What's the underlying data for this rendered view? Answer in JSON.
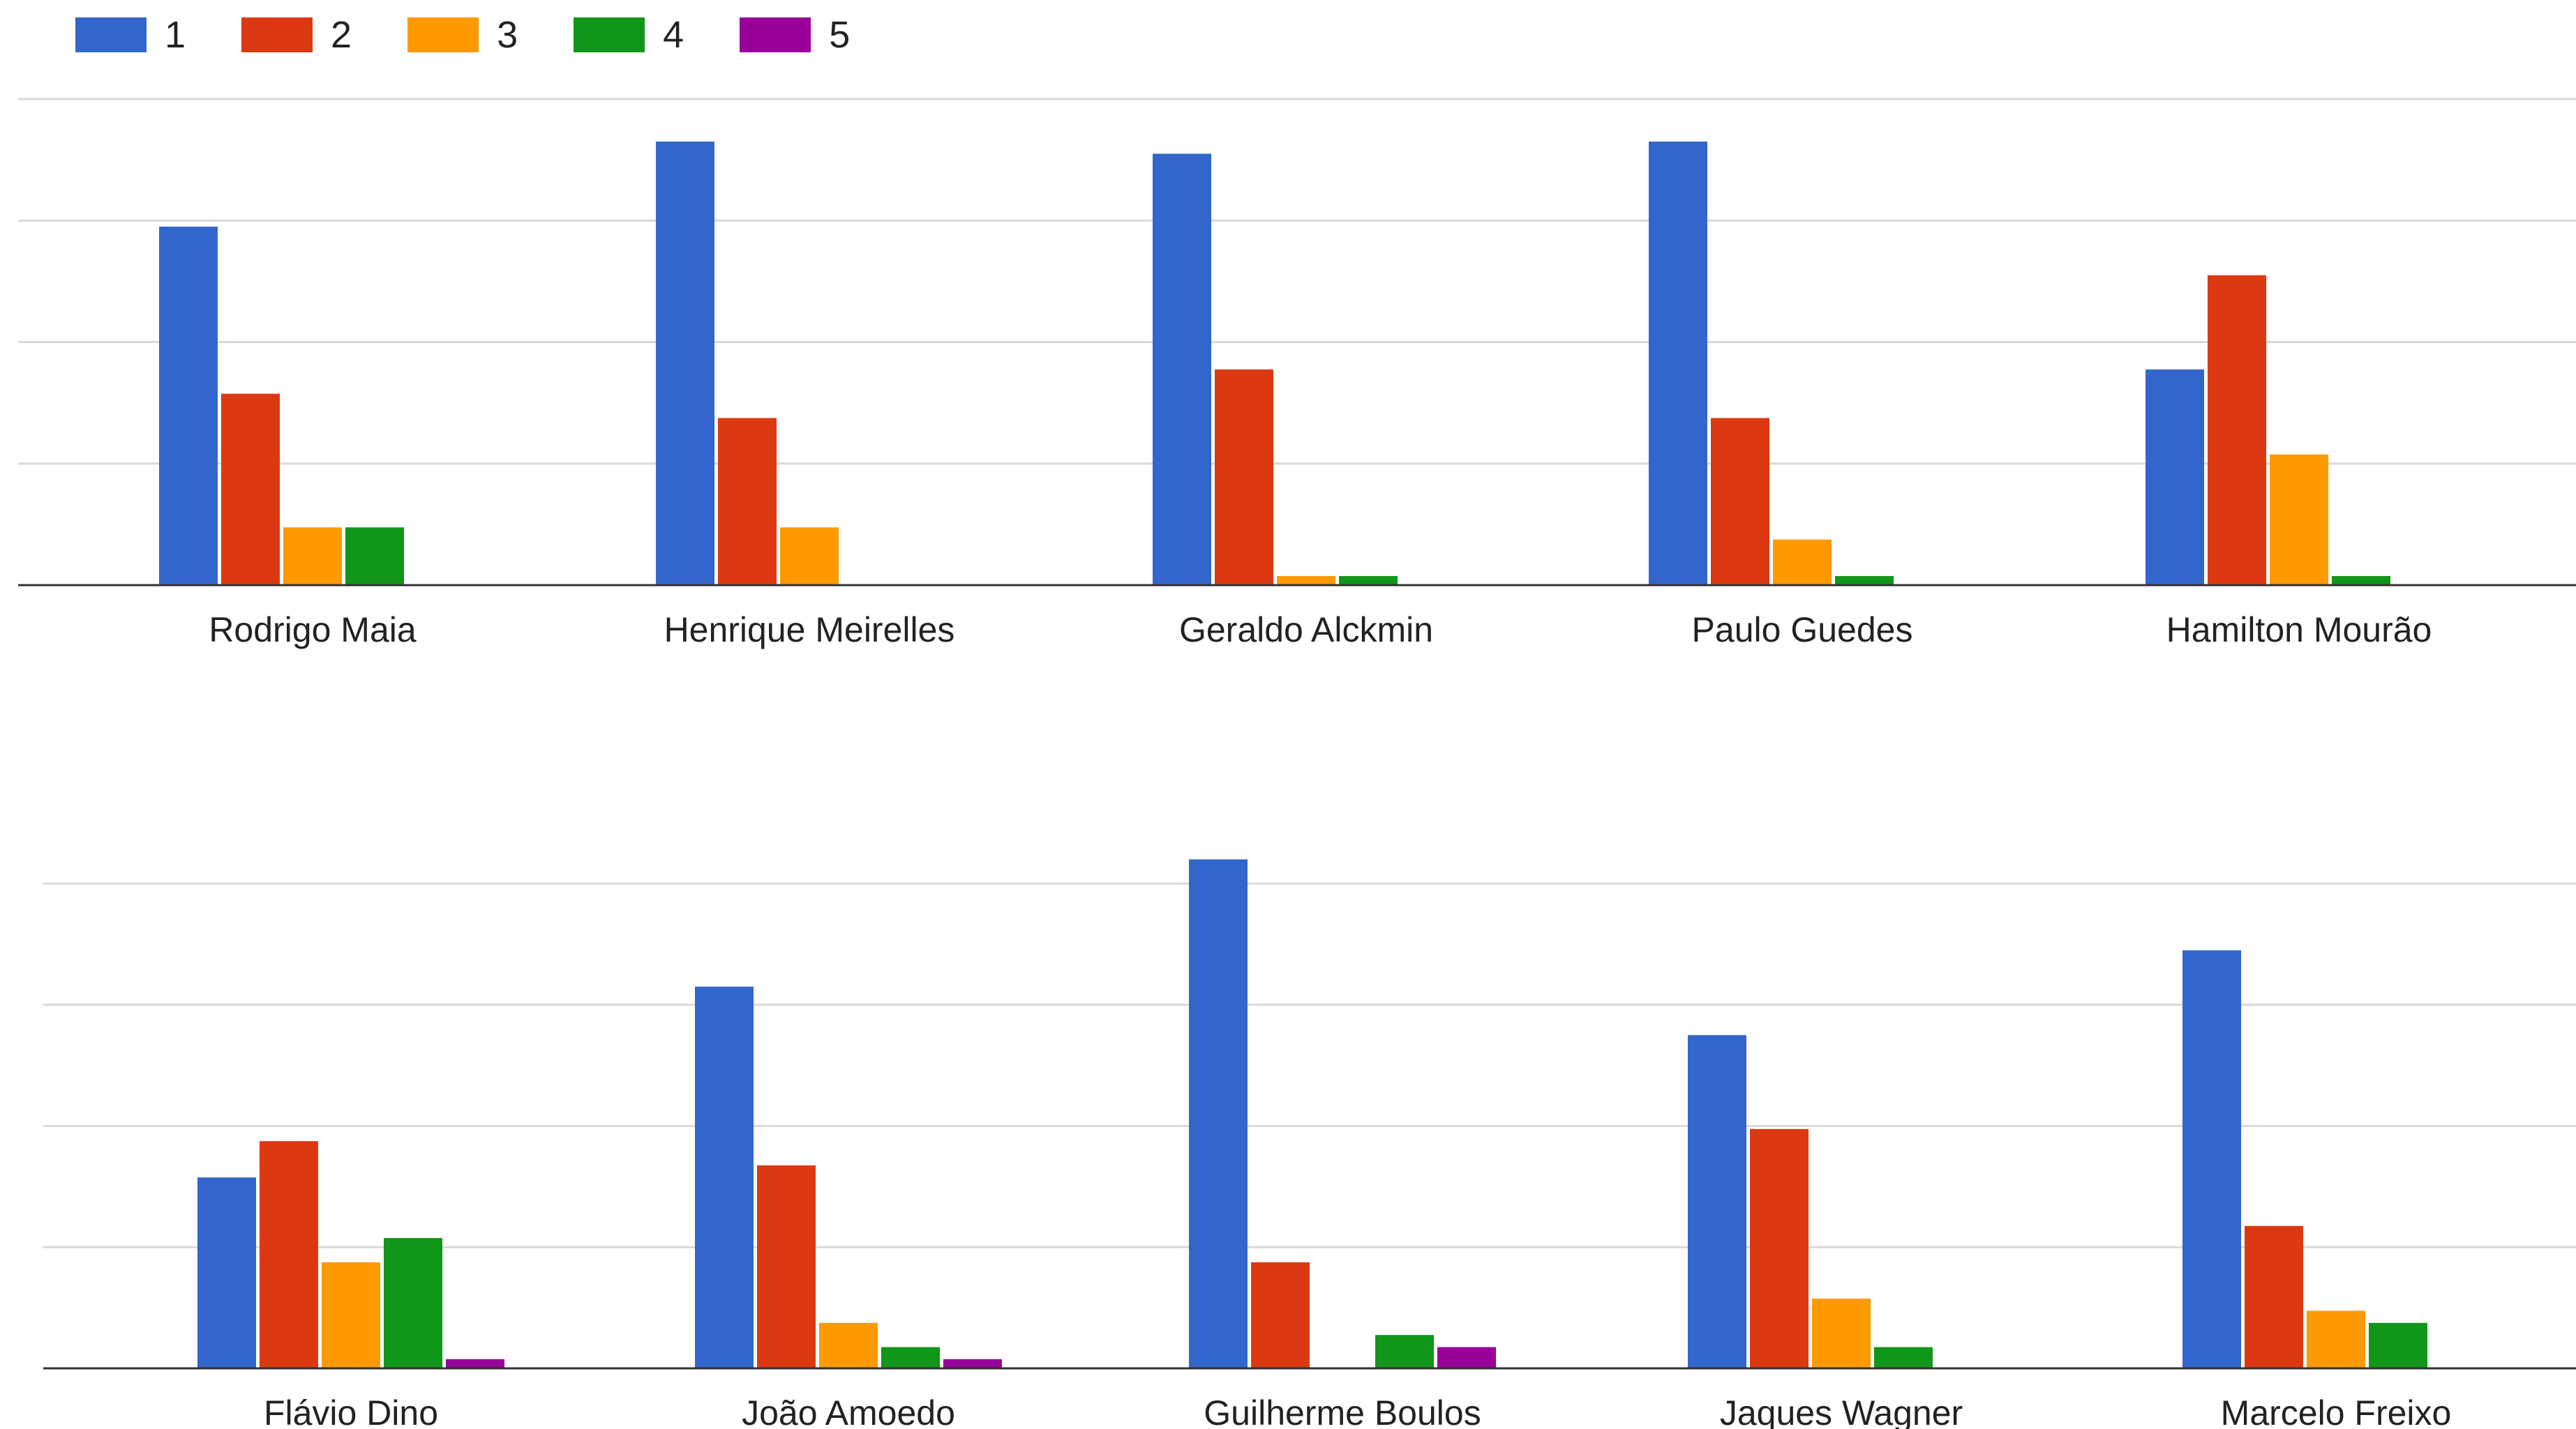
{
  "legend": [
    {
      "label": "1",
      "color": "#3366cc"
    },
    {
      "label": "2",
      "color": "#dc3912"
    },
    {
      "label": "3",
      "color": "#ff9900"
    },
    {
      "label": "4",
      "color": "#109618"
    },
    {
      "label": "5",
      "color": "#990099"
    }
  ],
  "chart_data": [
    {
      "type": "bar",
      "categories": [
        "Rodrigo Maia",
        "Henrique Meirelles",
        "Geraldo Alckmin",
        "Paulo Guedes",
        "Hamilton Mourão"
      ],
      "series": [
        {
          "name": "1",
          "values": [
            59,
            73,
            71,
            73,
            35.5
          ]
        },
        {
          "name": "2",
          "values": [
            31.5,
            27.5,
            35.5,
            27.5,
            51
          ]
        },
        {
          "name": "3",
          "values": [
            9.5,
            9.5,
            1.5,
            7.5,
            21.5
          ]
        },
        {
          "name": "4",
          "values": [
            9.5,
            0,
            1.5,
            1.5,
            1.5
          ]
        },
        {
          "name": "5",
          "values": [
            0,
            0,
            0,
            0,
            0
          ]
        }
      ],
      "ylim": [
        0,
        80
      ],
      "grid": true,
      "legend_position": "top-left"
    },
    {
      "type": "bar",
      "categories": [
        "Flávio Dino",
        "João Amoedo",
        "Guilherme Boulos",
        "Jaques Wagner",
        "Marcelo Freixo"
      ],
      "series": [
        {
          "name": "1",
          "values": [
            31.5,
            63,
            84,
            55,
            69
          ]
        },
        {
          "name": "2",
          "values": [
            37.5,
            33.5,
            17.5,
            39.5,
            23.5
          ]
        },
        {
          "name": "3",
          "values": [
            17.5,
            7.5,
            0,
            11.5,
            9.5
          ]
        },
        {
          "name": "4",
          "values": [
            21.5,
            3.5,
            5.5,
            3.5,
            7.5
          ]
        },
        {
          "name": "5",
          "values": [
            1.5,
            1.5,
            3.5,
            0,
            0
          ]
        }
      ],
      "ylim": [
        0,
        80
      ],
      "grid": true
    }
  ]
}
